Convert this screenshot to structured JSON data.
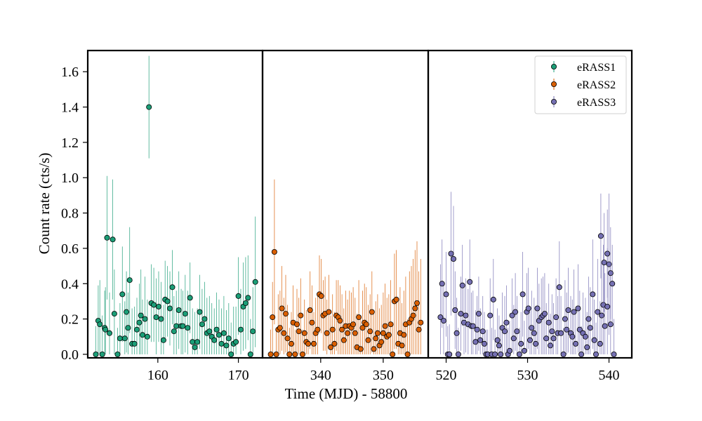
{
  "chart_data": {
    "type": "scatter",
    "style": "errorbar",
    "ylabel": "Count rate (cts/s)",
    "xlabel": "Time (MJD) - 58800",
    "ylim": [
      -0.02,
      1.72
    ],
    "yticks": [
      0.0,
      0.2,
      0.4,
      0.6,
      0.8,
      1.0,
      1.2,
      1.4,
      1.6
    ],
    "ytick_labels": [
      "0.0",
      "0.2",
      "0.4",
      "0.6",
      "0.8",
      "1.0",
      "1.2",
      "1.4",
      "1.6"
    ],
    "legend": {
      "placement": "top-right",
      "entries": [
        "eRASS1",
        "eRASS2",
        "eRASS3"
      ]
    },
    "colors": {
      "eRASS1": "#1b9e77",
      "eRASS2": "#d95f02",
      "eRASS3": "#7570b3"
    },
    "panels": [
      {
        "xlim": [
          151.3,
          173.0
        ],
        "xticks": [
          160,
          170
        ],
        "xtick_labels": [
          "160",
          "170"
        ],
        "series": [
          {
            "name": "eRASS1",
            "x": [
              152.3,
              152.6,
              152.8,
              153.1,
              153.4,
              153.5,
              153.7,
              154.0,
              154.4,
              154.6,
              155.0,
              155.3,
              155.6,
              155.9,
              156.1,
              156.3,
              156.5,
              156.8,
              157.1,
              157.4,
              157.7,
              157.9,
              158.1,
              158.4,
              158.7,
              158.9,
              159.2,
              159.5,
              159.8,
              160.1,
              160.4,
              160.7,
              160.9,
              161.2,
              161.5,
              161.8,
              162.0,
              162.3,
              162.6,
              162.9,
              163.1,
              163.4,
              163.7,
              164.0,
              164.3,
              164.6,
              164.9,
              165.2,
              165.5,
              165.8,
              166.1,
              166.4,
              166.7,
              167.0,
              167.3,
              167.6,
              167.9,
              168.2,
              168.5,
              168.8,
              169.1,
              169.4,
              169.7,
              170.0,
              170.3,
              170.6,
              170.9,
              171.2,
              171.5,
              171.8,
              172.1
            ],
            "y": [
              0.0,
              0.19,
              0.17,
              0.0,
              0.15,
              0.14,
              0.66,
              0.12,
              0.65,
              0.23,
              0.0,
              0.09,
              0.34,
              0.09,
              0.24,
              0.15,
              0.42,
              0.06,
              0.06,
              0.14,
              0.18,
              0.22,
              0.11,
              0.2,
              0.1,
              1.4,
              0.29,
              0.28,
              0.21,
              0.27,
              0.2,
              0.08,
              0.31,
              0.3,
              0.26,
              0.38,
              0.13,
              0.16,
              0.25,
              0.16,
              0.16,
              0.23,
              0.15,
              0.32,
              0.07,
              0.04,
              0.07,
              0.24,
              0.17,
              0.2,
              0.12,
              0.13,
              0.1,
              0.08,
              0.14,
              0.11,
              0.06,
              0.12,
              0.05,
              0.09,
              0.0,
              0.06,
              0.07,
              0.33,
              0.14,
              0.27,
              0.29,
              0.32,
              0.0,
              0.13,
              0.41
            ],
            "yerr": [
              0.16,
              0.2,
              0.25,
              0.22,
              0.21,
              0.24,
              0.35,
              0.23,
              0.34,
              0.25,
              0.15,
              0.2,
              0.27,
              0.21,
              0.23,
              0.2,
              0.3,
              0.2,
              0.21,
              0.18,
              0.22,
              0.26,
              0.2,
              0.24,
              0.21,
              0.29,
              0.22,
              0.21,
              0.22,
              0.2,
              0.21,
              0.2,
              0.22,
              0.2,
              0.21,
              0.21,
              0.2,
              0.2,
              0.22,
              0.21,
              0.2,
              0.22,
              0.21,
              0.2,
              0.19,
              0.2,
              0.19,
              0.21,
              0.2,
              0.21,
              0.2,
              0.2,
              0.19,
              0.18,
              0.21,
              0.2,
              0.2,
              0.21,
              0.2,
              0.2,
              0.18,
              0.21,
              0.2,
              0.22,
              0.23,
              0.25,
              0.26,
              0.24,
              0.2,
              0.25,
              0.37
            ]
          }
        ]
      },
      {
        "xlim": [
          330.7,
          357.2
        ],
        "xticks": [
          340,
          350
        ],
        "xtick_labels": [
          "340",
          "350"
        ],
        "series": [
          {
            "name": "eRASS2",
            "x": [
              332.0,
              332.3,
              332.6,
              332.9,
              333.2,
              333.5,
              333.8,
              334.1,
              334.4,
              334.7,
              335.0,
              335.3,
              335.6,
              335.9,
              336.2,
              336.5,
              336.8,
              337.1,
              337.4,
              337.7,
              338.0,
              338.3,
              338.6,
              338.9,
              339.2,
              339.5,
              339.8,
              340.1,
              340.4,
              340.7,
              341.0,
              341.3,
              341.6,
              341.9,
              342.2,
              342.5,
              342.8,
              343.1,
              343.4,
              343.7,
              344.0,
              344.3,
              344.6,
              344.9,
              345.2,
              345.5,
              345.8,
              346.1,
              346.4,
              346.7,
              347.0,
              347.3,
              347.6,
              347.9,
              348.2,
              348.5,
              348.8,
              349.1,
              349.4,
              349.7,
              350.0,
              350.3,
              350.6,
              350.9,
              351.2,
              351.5,
              351.8,
              352.1,
              352.4,
              352.7,
              353.0,
              353.3,
              353.6,
              353.9,
              354.2,
              354.5,
              354.8,
              355.1,
              355.4,
              355.7,
              356.0
            ],
            "y": [
              0.0,
              0.21,
              0.58,
              0.0,
              0.14,
              0.15,
              0.26,
              0.12,
              0.23,
              0.09,
              0.0,
              0.06,
              0.18,
              0.0,
              0.17,
              0.13,
              0.22,
              0.0,
              0.12,
              0.07,
              0.06,
              0.25,
              0.18,
              0.06,
              0.12,
              0.14,
              0.34,
              0.33,
              0.22,
              0.23,
              0.12,
              0.24,
              0.04,
              0.14,
              0.06,
              0.22,
              0.21,
              0.19,
              0.14,
              0.08,
              0.16,
              0.12,
              0.16,
              0.15,
              0.17,
              0.12,
              0.04,
              0.21,
              0.03,
              0.15,
              0.18,
              0.17,
              0.08,
              0.13,
              0.24,
              0.03,
              0.09,
              0.12,
              0.05,
              0.07,
              0.12,
              0.16,
              0.1,
              0.11,
              0.17,
              0.0,
              0.3,
              0.31,
              0.06,
              0.12,
              0.05,
              0.11,
              0.17,
              0.0,
              0.18,
              0.2,
              0.22,
              0.26,
              0.29,
              0.14,
              0.18
            ],
            "yerr": [
              0.14,
              0.2,
              0.41,
              0.15,
              0.2,
              0.21,
              0.24,
              0.2,
              0.22,
              0.19,
              0.15,
              0.18,
              0.21,
              0.14,
              0.2,
              0.19,
              0.21,
              0.14,
              0.19,
              0.18,
              0.18,
              0.22,
              0.21,
              0.18,
              0.2,
              0.21,
              0.22,
              0.21,
              0.2,
              0.21,
              0.19,
              0.21,
              0.18,
              0.2,
              0.18,
              0.2,
              0.21,
              0.2,
              0.2,
              0.18,
              0.2,
              0.19,
              0.2,
              0.2,
              0.21,
              0.2,
              0.19,
              0.21,
              0.19,
              0.21,
              0.22,
              0.21,
              0.2,
              0.21,
              0.23,
              0.2,
              0.21,
              0.22,
              0.21,
              0.21,
              0.23,
              0.24,
              0.22,
              0.23,
              0.25,
              0.18,
              0.27,
              0.28,
              0.24,
              0.26,
              0.24,
              0.25,
              0.27,
              0.2,
              0.29,
              0.3,
              0.32,
              0.33,
              0.35,
              0.33,
              0.36
            ]
          }
        ]
      },
      {
        "xlim": [
          517.8,
          542.8
        ],
        "xticks": [
          520,
          530,
          540
        ],
        "xtick_labels": [
          "520",
          "530",
          "540"
        ],
        "series": [
          {
            "name": "eRASS3",
            "x": [
              519.3,
              519.5,
              519.7,
              520.0,
              520.2,
              520.4,
              520.6,
              520.9,
              521.1,
              521.3,
              521.5,
              521.8,
              522.0,
              522.2,
              522.4,
              522.7,
              522.9,
              523.1,
              523.3,
              523.6,
              523.8,
              524.0,
              524.2,
              524.5,
              524.7,
              524.9,
              525.1,
              525.4,
              525.6,
              525.8,
              526.0,
              526.3,
              526.5,
              526.7,
              526.9,
              527.2,
              527.4,
              527.6,
              527.8,
              528.1,
              528.3,
              528.5,
              528.7,
              529.0,
              529.2,
              529.4,
              529.6,
              529.9,
              530.1,
              530.3,
              530.5,
              530.8,
              531.0,
              531.2,
              531.4,
              531.7,
              531.9,
              532.1,
              532.3,
              532.6,
              532.8,
              533.0,
              533.2,
              533.5,
              533.7,
              533.9,
              534.1,
              534.4,
              534.6,
              534.8,
              535.0,
              535.3,
              535.5,
              535.7,
              535.9,
              536.2,
              536.4,
              536.6,
              536.8,
              537.1,
              537.3,
              537.5,
              537.7,
              538.0,
              538.2,
              538.4,
              538.6,
              538.9,
              539.1,
              539.3,
              539.5,
              539.8,
              540.0,
              540.2
            ],
            "y": [
              0.21,
              0.4,
              0.19,
              0.34,
              0.0,
              0.0,
              0.57,
              0.54,
              0.25,
              0.12,
              0.0,
              0.23,
              0.39,
              0.18,
              0.22,
              0.17,
              0.41,
              0.16,
              0.16,
              0.07,
              0.14,
              0.23,
              0.08,
              0.13,
              0.06,
              0.0,
              0.0,
              0.22,
              0.0,
              0.31,
              0.0,
              0.08,
              0.05,
              0.0,
              0.15,
              0.13,
              0.18,
              0.0,
              0.02,
              0.22,
              0.09,
              0.24,
              0.13,
              0.0,
              0.06,
              0.34,
              0.02,
              0.24,
              0.26,
              0.08,
              0.15,
              0.12,
              0.06,
              0.26,
              0.19,
              0.21,
              0.22,
              0.23,
              0.09,
              0.18,
              0.05,
              0.13,
              0.09,
              0.21,
              0.12,
              0.38,
              0.12,
              0.0,
              0.2,
              0.14,
              0.25,
              0.12,
              0.1,
              0.24,
              0.06,
              0.26,
              0.14,
              0.0,
              0.12,
              0.1,
              0.04,
              0.2,
              0.15,
              0.34,
              0.08,
              0.0,
              0.24,
              0.06,
              0.22,
              0.28,
              0.16,
              0.27,
              0.51,
              0.17
            ],
            "yerr": [
              0.3,
              0.25,
              0.2,
              0.24,
              0.16,
              0.17,
              0.35,
              0.3,
              0.22,
              0.2,
              0.15,
              0.21,
              0.23,
              0.2,
              0.21,
              0.2,
              0.24,
              0.19,
              0.2,
              0.18,
              0.19,
              0.21,
              0.18,
              0.2,
              0.18,
              0.14,
              0.14,
              0.21,
              0.15,
              0.23,
              0.14,
              0.18,
              0.17,
              0.14,
              0.2,
              0.2,
              0.21,
              0.15,
              0.17,
              0.21,
              0.19,
              0.22,
              0.2,
              0.15,
              0.18,
              0.24,
              0.17,
              0.22,
              0.23,
              0.19,
              0.21,
              0.2,
              0.19,
              0.23,
              0.21,
              0.22,
              0.22,
              0.23,
              0.2,
              0.22,
              0.18,
              0.21,
              0.2,
              0.22,
              0.21,
              0.26,
              0.21,
              0.15,
              0.22,
              0.21,
              0.24,
              0.21,
              0.21,
              0.24,
              0.19,
              0.25,
              0.22,
              0.16,
              0.23,
              0.22,
              0.2,
              0.24,
              0.23,
              0.31,
              0.23,
              0.18,
              0.3,
              0.24,
              0.3,
              0.34,
              0.3,
              0.33,
              0.4,
              0.34
            ]
          }
        ]
      }
    ],
    "extra_points": [
      {
        "series": "eRASS3",
        "x": [
          539.0,
          539.4,
          539.8,
          540.2,
          540.4,
          540.6
        ],
        "y": [
          0.67,
          0.52,
          0.57,
          0.46,
          0.4,
          0.0
        ],
        "yerr": [
          0.24,
          0.28,
          0.25,
          0.26,
          0.22,
          0.2
        ]
      }
    ]
  }
}
